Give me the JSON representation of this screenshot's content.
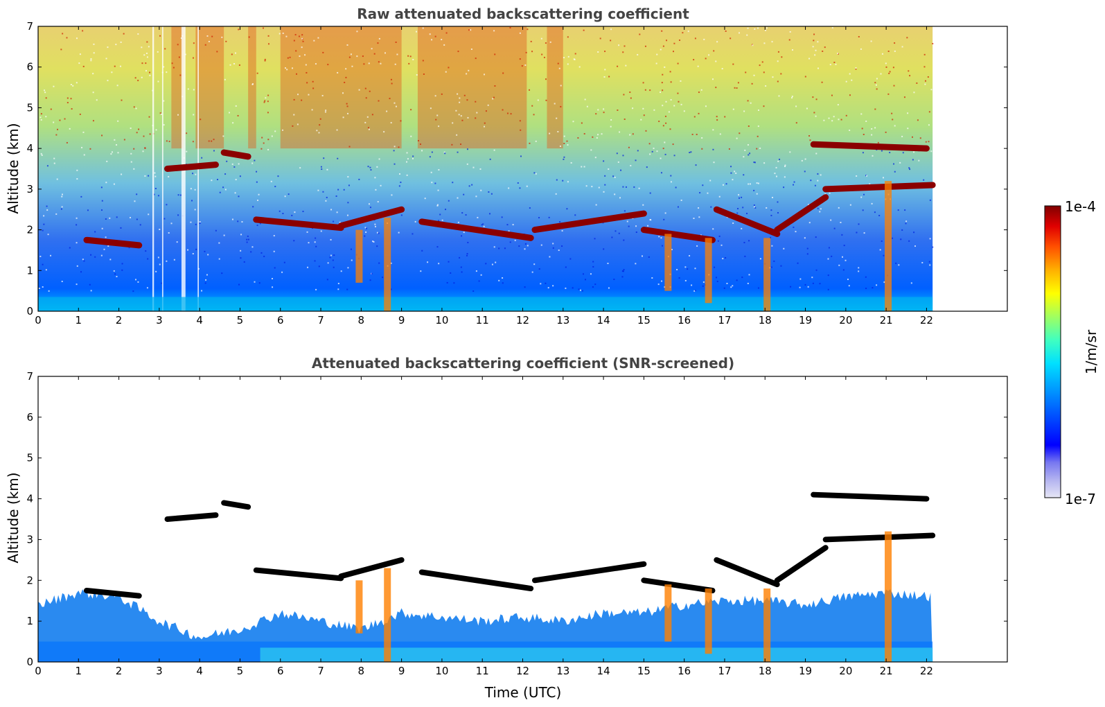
{
  "chart_data": [
    {
      "type": "heatmap",
      "title": "Raw attenuated backscattering coefficient",
      "xlabel": "",
      "ylabel": "Altitude (km)",
      "xlim": [
        0,
        24
      ],
      "ylim": [
        0,
        7
      ],
      "x_ticks": [
        "0",
        "1",
        "2",
        "3",
        "4",
        "5",
        "6",
        "7",
        "8",
        "9",
        "10",
        "11",
        "12",
        "13",
        "14",
        "15",
        "16",
        "17",
        "18",
        "19",
        "20",
        "21",
        "22"
      ],
      "y_ticks": [
        "0",
        "1",
        "2",
        "3",
        "4",
        "5",
        "6",
        "7"
      ],
      "data_end_hour": 22.15,
      "screened": false,
      "cloud_layers": [
        {
          "x": [
            1.2,
            2.5
          ],
          "y": [
            1.75,
            1.62
          ]
        },
        {
          "x": [
            3.2,
            4.4
          ],
          "y": [
            3.5,
            3.6
          ]
        },
        {
          "x": [
            4.6,
            5.2
          ],
          "y": [
            3.9,
            3.8
          ]
        },
        {
          "x": [
            5.4,
            7.5
          ],
          "y": [
            2.25,
            2.05
          ]
        },
        {
          "x": [
            7.5,
            9.0
          ],
          "y": [
            2.1,
            2.5
          ]
        },
        {
          "x": [
            9.5,
            12.2
          ],
          "y": [
            2.2,
            1.8
          ]
        },
        {
          "x": [
            12.3,
            15.0
          ],
          "y": [
            2.0,
            2.4
          ]
        },
        {
          "x": [
            15.0,
            16.7
          ],
          "y": [
            2.0,
            1.75
          ]
        },
        {
          "x": [
            16.8,
            18.3
          ],
          "y": [
            2.5,
            1.9
          ]
        },
        {
          "x": [
            18.3,
            19.5
          ],
          "y": [
            2.0,
            2.8
          ]
        },
        {
          "x": [
            19.5,
            22.15
          ],
          "y": [
            3.0,
            3.1
          ]
        },
        {
          "x": [
            19.2,
            22.0
          ],
          "y": [
            4.1,
            4.0
          ]
        }
      ],
      "fall_streaks": [
        {
          "x": 7.95,
          "top": 2.0,
          "bottom": 0.7
        },
        {
          "x": 8.65,
          "top": 2.3,
          "bottom": 0.0
        },
        {
          "x": 15.6,
          "top": 1.9,
          "bottom": 0.5
        },
        {
          "x": 16.6,
          "top": 1.8,
          "bottom": 0.2
        },
        {
          "x": 18.05,
          "top": 1.8,
          "bottom": 0.0
        },
        {
          "x": 21.05,
          "top": 3.2,
          "bottom": 0.0
        }
      ]
    },
    {
      "type": "heatmap",
      "title": "Attenuated backscattering coefficient (SNR-screened)",
      "xlabel": "Time (UTC)",
      "ylabel": "Altitude (km)",
      "xlim": [
        0,
        24
      ],
      "ylim": [
        0,
        7
      ],
      "x_ticks": [
        "0",
        "1",
        "2",
        "3",
        "4",
        "5",
        "6",
        "7",
        "8",
        "9",
        "10",
        "11",
        "12",
        "13",
        "14",
        "15",
        "16",
        "17",
        "18",
        "19",
        "20",
        "21",
        "22"
      ],
      "y_ticks": [
        "0",
        "1",
        "2",
        "3",
        "4",
        "5",
        "6",
        "7"
      ],
      "data_end_hour": 22.15,
      "screened": true,
      "boundary_layer_top": {
        "x": [
          0,
          1,
          2,
          3,
          4,
          5,
          6,
          7,
          8,
          9,
          10,
          11,
          12,
          13,
          14,
          15,
          16,
          17,
          18,
          19,
          20,
          21,
          22.15
        ],
        "y": [
          1.4,
          1.7,
          1.6,
          1.0,
          0.6,
          0.8,
          1.2,
          1.0,
          0.8,
          1.2,
          1.1,
          1.0,
          1.1,
          1.0,
          1.2,
          1.2,
          1.4,
          1.5,
          1.5,
          1.4,
          1.6,
          1.7,
          1.6
        ]
      }
    }
  ],
  "colorbar": {
    "max_label": "1e-4",
    "min_label": "1e-7",
    "unit_label": "1/m/sr",
    "colormap": [
      "#e6e6f5",
      "#b4b4f0",
      "#7878f0",
      "#0000ff",
      "#0050ff",
      "#00a0ff",
      "#00e0ff",
      "#40ffc0",
      "#a0ff60",
      "#ffff00",
      "#ffb000",
      "#ff5000",
      "#e00000",
      "#800000"
    ]
  }
}
